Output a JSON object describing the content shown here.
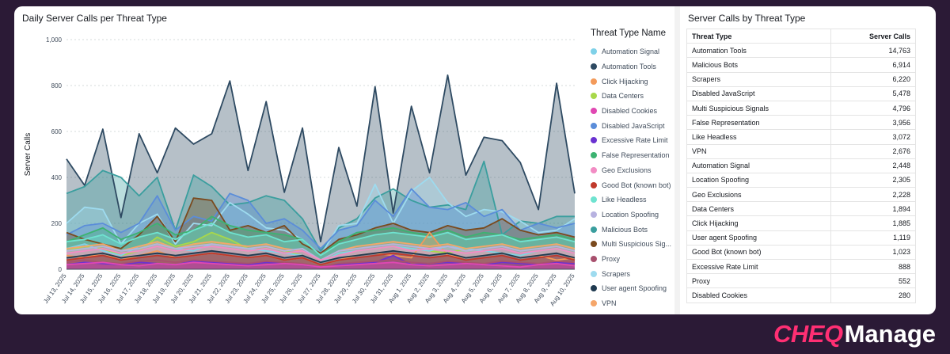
{
  "chart_panel": {
    "title": "Daily Server Calls per Threat Type"
  },
  "chart_data": {
    "type": "area",
    "ylabel": "Server Calls",
    "ylim": [
      0,
      1000
    ],
    "y_ticks": [
      "0",
      "200",
      "400",
      "600",
      "800",
      "1,000"
    ],
    "legend_title": "Threat Type Name",
    "x": [
      "Jul 13, 2025",
      "Jul 14, 2025",
      "Jul 15, 2025",
      "Jul 16, 2025",
      "Jul 17, 2025",
      "Jul 18, 2025",
      "Jul 19, 2025",
      "Jul 20, 2025",
      "Jul 21, 2025",
      "Jul 22, 2025",
      "Jul 23, 2025",
      "Jul 24, 2025",
      "Jul 25, 2025",
      "Jul 26, 2025",
      "Jul 27, 2025",
      "Jul 28, 2025",
      "Jul 29, 2025",
      "Jul 30, 2025",
      "Jul 31, 2025",
      "Aug 1, 2025",
      "Aug 2, 2025",
      "Aug 3, 2025",
      "Aug 4, 2025",
      "Aug 5, 2025",
      "Aug 6, 2025",
      "Aug 7, 2025",
      "Aug 8, 2025",
      "Aug 9, 2025",
      "Aug 10, 2025"
    ],
    "series": [
      {
        "name": "Automation Signal",
        "color": "#7fd1e8",
        "values": [
          90,
          110,
          80,
          60,
          100,
          120,
          90,
          80,
          110,
          100,
          90,
          80,
          70,
          60,
          30,
          70,
          80,
          90,
          100,
          90,
          80,
          100,
          90,
          80,
          70,
          60,
          80,
          90,
          70
        ]
      },
      {
        "name": "Automation Tools",
        "color": "#2e4a62",
        "values": [
          480,
          365,
          610,
          225,
          590,
          420,
          615,
          545,
          590,
          820,
          430,
          730,
          335,
          615,
          120,
          530,
          275,
          795,
          245,
          710,
          420,
          845,
          410,
          575,
          560,
          465,
          260,
          810,
          330
        ]
      },
      {
        "name": "Click Hijacking",
        "color": "#f39a5a",
        "values": [
          60,
          50,
          70,
          40,
          60,
          80,
          50,
          60,
          70,
          60,
          50,
          60,
          40,
          50,
          20,
          40,
          60,
          70,
          60,
          50,
          160,
          60,
          50,
          60,
          70,
          50,
          60,
          40,
          50
        ]
      },
      {
        "name": "Data Centers",
        "color": "#a8d84a",
        "values": [
          80,
          100,
          90,
          60,
          80,
          140,
          100,
          120,
          160,
          130,
          90,
          100,
          80,
          60,
          30,
          70,
          80,
          90,
          100,
          90,
          80,
          70,
          90,
          80,
          70,
          60,
          80,
          90,
          70
        ]
      },
      {
        "name": "Disabled Cookies",
        "color": "#e047b2",
        "values": [
          20,
          25,
          30,
          20,
          15,
          25,
          20,
          30,
          25,
          20,
          15,
          20,
          25,
          20,
          10,
          15,
          20,
          25,
          30,
          20,
          15,
          20,
          25,
          20,
          15,
          10,
          20,
          25,
          15
        ]
      },
      {
        "name": "Disabled JavaScript",
        "color": "#5b8dd9",
        "values": [
          150,
          190,
          200,
          160,
          200,
          320,
          170,
          230,
          210,
          330,
          300,
          200,
          220,
          170,
          90,
          170,
          190,
          300,
          230,
          350,
          270,
          260,
          290,
          230,
          260,
          170,
          200,
          180,
          200
        ]
      },
      {
        "name": "Excessive Rate Limit",
        "color": "#6a32d1",
        "values": [
          20,
          30,
          25,
          20,
          30,
          25,
          20,
          35,
          30,
          25,
          20,
          30,
          25,
          20,
          10,
          20,
          25,
          30,
          60,
          20,
          25,
          30,
          25,
          20,
          30,
          25,
          20,
          30,
          25
        ]
      },
      {
        "name": "False Representation",
        "color": "#3cb371",
        "values": [
          120,
          150,
          180,
          130,
          160,
          200,
          150,
          170,
          230,
          190,
          170,
          160,
          150,
          130,
          60,
          120,
          160,
          170,
          180,
          160,
          150,
          170,
          140,
          160,
          150,
          130,
          140,
          150,
          130
        ]
      },
      {
        "name": "Geo Exclusions",
        "color": "#f28cc4",
        "values": [
          70,
          80,
          90,
          70,
          80,
          100,
          80,
          90,
          100,
          90,
          80,
          90,
          70,
          80,
          40,
          60,
          80,
          90,
          100,
          80,
          90,
          80,
          70,
          80,
          90,
          70,
          80,
          90,
          70
        ]
      },
      {
        "name": "Good Bot (known bot)",
        "color": "#c0392b",
        "values": [
          40,
          50,
          60,
          40,
          50,
          60,
          50,
          60,
          70,
          60,
          50,
          60,
          40,
          50,
          20,
          40,
          50,
          60,
          70,
          60,
          50,
          60,
          40,
          50,
          60,
          40,
          50,
          60,
          40
        ]
      },
      {
        "name": "Like Headless",
        "color": "#6fe3d0",
        "values": [
          120,
          130,
          150,
          110,
          140,
          160,
          130,
          170,
          200,
          160,
          140,
          150,
          120,
          130,
          60,
          110,
          130,
          150,
          160,
          150,
          140,
          160,
          130,
          140,
          150,
          120,
          130,
          140,
          120
        ]
      },
      {
        "name": "Location Spoofing",
        "color": "#b7b2e0",
        "values": [
          80,
          90,
          100,
          80,
          90,
          110,
          90,
          100,
          110,
          100,
          90,
          100,
          80,
          90,
          40,
          80,
          90,
          100,
          110,
          100,
          90,
          100,
          80,
          90,
          100,
          80,
          90,
          100,
          80
        ]
      },
      {
        "name": "Malicious Bots",
        "color": "#3a9e9e",
        "values": [
          330,
          360,
          430,
          400,
          320,
          400,
          170,
          410,
          360,
          280,
          290,
          320,
          300,
          220,
          80,
          180,
          220,
          310,
          350,
          300,
          270,
          280,
          260,
          470,
          150,
          210,
          200,
          230,
          230
        ]
      },
      {
        "name": "Multi Suspicious Signals",
        "color": "#7a4a1e",
        "values": [
          160,
          130,
          110,
          90,
          150,
          230,
          120,
          310,
          300,
          170,
          190,
          160,
          190,
          110,
          70,
          130,
          150,
          180,
          200,
          170,
          160,
          190,
          170,
          180,
          220,
          170,
          150,
          160,
          140
        ]
      },
      {
        "name": "Proxy",
        "color": "#a8506e",
        "values": [
          30,
          40,
          30,
          25,
          35,
          40,
          30,
          40,
          35,
          30,
          25,
          35,
          30,
          25,
          10,
          25,
          30,
          35,
          40,
          30,
          25,
          35,
          30,
          25,
          35,
          30,
          25,
          35,
          30
        ]
      },
      {
        "name": "Scrapers",
        "color": "#9edbef",
        "values": [
          200,
          270,
          260,
          110,
          200,
          240,
          110,
          200,
          190,
          290,
          240,
          180,
          170,
          130,
          60,
          190,
          200,
          370,
          200,
          340,
          400,
          290,
          230,
          260,
          250,
          210,
          160,
          170,
          220
        ]
      },
      {
        "name": "User agent Spoofing",
        "color": "#1f3a50",
        "values": [
          50,
          60,
          70,
          50,
          60,
          70,
          60,
          70,
          80,
          70,
          60,
          70,
          50,
          60,
          30,
          50,
          60,
          70,
          80,
          70,
          60,
          70,
          50,
          60,
          70,
          50,
          60,
          70,
          50
        ]
      },
      {
        "name": "VPN",
        "color": "#f5a66a",
        "values": [
          90,
          100,
          110,
          80,
          100,
          120,
          90,
          110,
          120,
          110,
          100,
          110,
          90,
          80,
          40,
          80,
          100,
          110,
          120,
          110,
          100,
          110,
          90,
          100,
          110,
          90,
          100,
          110,
          90
        ]
      }
    ]
  },
  "table_panel": {
    "title": "Server Calls by Threat Type",
    "headers": [
      "Threat Type",
      "Server Calls"
    ],
    "rows": [
      [
        "Automation Tools",
        "14,763"
      ],
      [
        "Malicious Bots",
        "6,914"
      ],
      [
        "Scrapers",
        "6,220"
      ],
      [
        "Disabled JavaScript",
        "5,478"
      ],
      [
        "Multi Suspicious Signals",
        "4,796"
      ],
      [
        "False Representation",
        "3,956"
      ],
      [
        "Like Headless",
        "3,072"
      ],
      [
        "VPN",
        "2,676"
      ],
      [
        "Automation Signal",
        "2,448"
      ],
      [
        "Location Spoofing",
        "2,305"
      ],
      [
        "Geo Exclusions",
        "2,228"
      ],
      [
        "Data Centers",
        "1,894"
      ],
      [
        "Click Hijacking",
        "1,885"
      ],
      [
        "User agent Spoofing",
        "1,119"
      ],
      [
        "Good Bot (known bot)",
        "1,023"
      ],
      [
        "Excessive Rate Limit",
        "888"
      ],
      [
        "Proxy",
        "552"
      ],
      [
        "Disabled Cookies",
        "280"
      ]
    ]
  },
  "legend_labels": [
    "Automation Signal",
    "Automation Tools",
    "Click Hijacking",
    "Data Centers",
    "Disabled Cookies",
    "Disabled JavaScript",
    "Excessive Rate Limit",
    "False Representation",
    "Geo Exclusions",
    "Good Bot (known bot)",
    "Like Headless",
    "Location Spoofing",
    "Malicious Bots",
    "Multi Suspicious Sig...",
    "Proxy",
    "Scrapers",
    "User agent Spoofing",
    "VPN"
  ],
  "brand": {
    "part1": "CHEQ",
    "part2": "Manage"
  }
}
